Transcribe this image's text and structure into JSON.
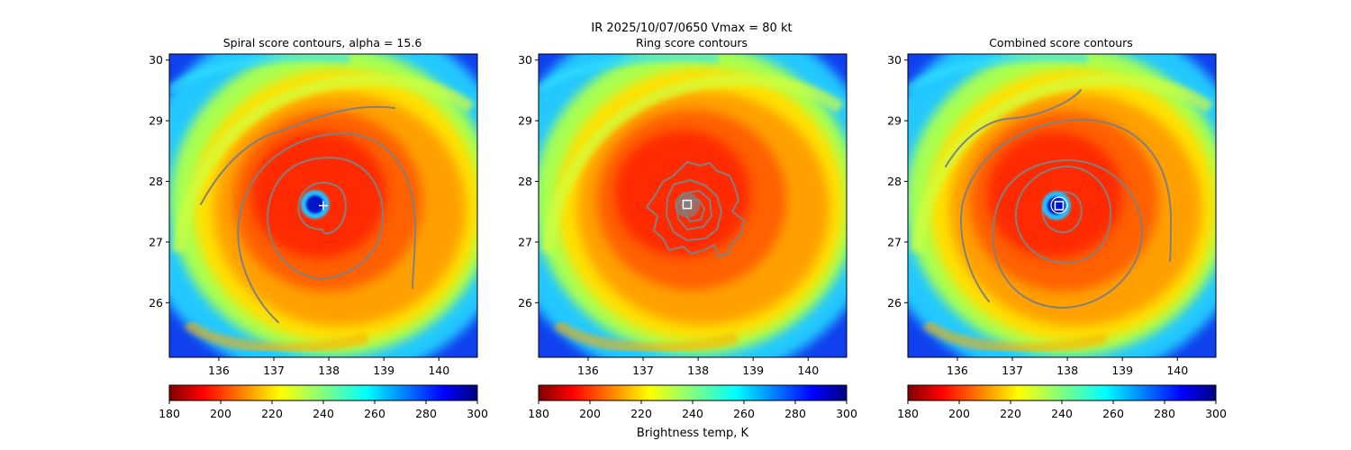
{
  "suptitle": "IR  2025/10/07/0650    Vmax = 80 kt",
  "colorbar_label": "Brightness temp, K",
  "colors": {
    "contour": "#808080",
    "marker": "#ffffff"
  },
  "chart_data": [
    {
      "type": "heatmap",
      "title": "Spiral score contours, alpha = 15.6",
      "field": "IR brightness temperature",
      "xlim": [
        135.1,
        140.7
      ],
      "ylim": [
        25.1,
        30.1
      ],
      "xticks": [
        136,
        137,
        138,
        139,
        140
      ],
      "yticks": [
        26,
        27,
        28,
        29,
        30
      ],
      "center_marker": {
        "shape": "plus",
        "lon": 137.9,
        "lat": 27.6
      },
      "eye": {
        "lon": 137.75,
        "lat": 27.62,
        "min_K": 290
      },
      "colorbar": {
        "cmap": "jet_r",
        "vmin": 180,
        "vmax": 300,
        "ticks": [
          180,
          200,
          220,
          240,
          260,
          280,
          300
        ]
      }
    },
    {
      "type": "heatmap",
      "title": "Ring score contours",
      "field": "IR brightness temperature",
      "xlim": [
        135.1,
        140.7
      ],
      "ylim": [
        25.1,
        30.1
      ],
      "xticks": [
        136,
        137,
        138,
        139,
        140
      ],
      "yticks": [
        26,
        27,
        28,
        29,
        30
      ],
      "center_marker": {
        "shape": "square",
        "lon": 137.8,
        "lat": 27.62
      },
      "colorbar": {
        "cmap": "jet_r",
        "vmin": 180,
        "vmax": 300,
        "ticks": [
          180,
          200,
          220,
          240,
          260,
          280,
          300
        ],
        "label": "Brightness temp, K"
      }
    },
    {
      "type": "heatmap",
      "title": "Combined score contours",
      "field": "IR brightness temperature",
      "xlim": [
        135.1,
        140.7
      ],
      "ylim": [
        25.1,
        30.1
      ],
      "xticks": [
        136,
        137,
        138,
        139,
        140
      ],
      "yticks": [
        26,
        27,
        28,
        29,
        30
      ],
      "center_marker": {
        "shape": "square",
        "lon": 137.85,
        "lat": 27.6
      },
      "eye": {
        "lon": 137.8,
        "lat": 27.6,
        "min_K": 290
      },
      "colorbar": {
        "cmap": "jet_r",
        "vmin": 180,
        "vmax": 300,
        "ticks": [
          180,
          200,
          220,
          240,
          260,
          280,
          300
        ]
      }
    }
  ]
}
